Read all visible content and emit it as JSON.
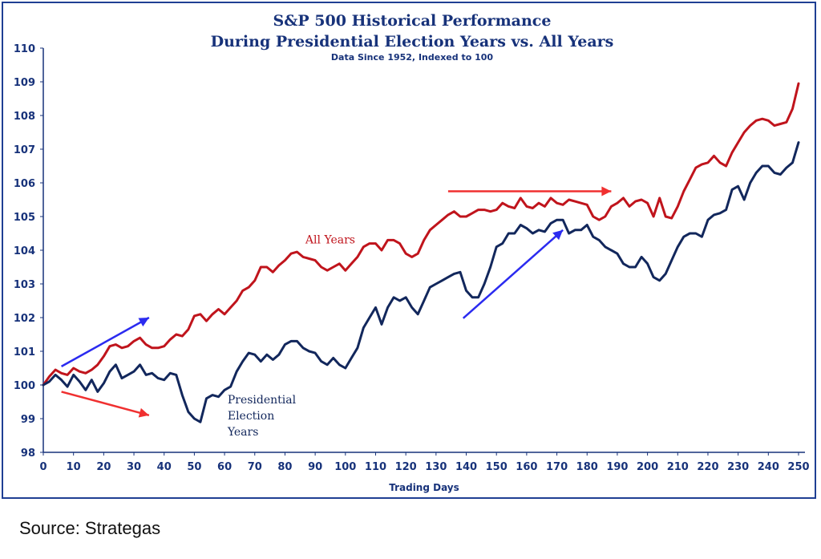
{
  "source_text": "Source: Strategas",
  "colors": {
    "all_years": "#c0141c",
    "election_years": "#12275c",
    "arrow_blue": "#2b2bf0",
    "arrow_red": "#f03030",
    "axis": "#17327a"
  },
  "chart_data": {
    "type": "line",
    "title": "S&P 500 Historical Performance",
    "title_line2": "During Presidential Election Years vs. All Years",
    "subtitle": "Data Since 1952, Indexed to 100",
    "xlabel": "Trading Days",
    "ylabel": "",
    "xlim": [
      0,
      252
    ],
    "ylim": [
      98,
      110
    ],
    "xticks": [
      0,
      10,
      20,
      30,
      40,
      50,
      60,
      70,
      80,
      90,
      100,
      110,
      120,
      130,
      140,
      150,
      160,
      170,
      180,
      190,
      200,
      210,
      220,
      230,
      240,
      250
    ],
    "yticks": [
      98,
      99,
      100,
      101,
      102,
      103,
      104,
      105,
      106,
      107,
      108,
      109,
      110
    ],
    "grid": false,
    "series": [
      {
        "name": "All Years",
        "x": [
          0,
          2,
          4,
          6,
          8,
          10,
          12,
          14,
          16,
          18,
          20,
          22,
          24,
          26,
          28,
          30,
          32,
          34,
          36,
          38,
          40,
          42,
          44,
          46,
          48,
          50,
          52,
          54,
          56,
          58,
          60,
          62,
          64,
          66,
          68,
          70,
          72,
          74,
          76,
          78,
          80,
          82,
          84,
          86,
          88,
          90,
          92,
          94,
          96,
          98,
          100,
          102,
          104,
          106,
          108,
          110,
          112,
          114,
          116,
          118,
          120,
          122,
          124,
          126,
          128,
          130,
          132,
          134,
          136,
          138,
          140,
          142,
          144,
          146,
          148,
          150,
          152,
          154,
          156,
          158,
          160,
          162,
          164,
          166,
          168,
          170,
          172,
          174,
          176,
          178,
          180,
          182,
          184,
          186,
          188,
          190,
          192,
          194,
          196,
          198,
          200,
          202,
          204,
          206,
          208,
          210,
          212,
          214,
          216,
          218,
          220,
          222,
          224,
          226,
          228,
          230,
          232,
          234,
          236,
          238,
          240,
          242,
          244,
          246,
          248,
          250
        ],
        "values": [
          100.0,
          100.25,
          100.45,
          100.35,
          100.3,
          100.5,
          100.4,
          100.35,
          100.45,
          100.6,
          100.85,
          101.15,
          101.2,
          101.1,
          101.15,
          101.3,
          101.4,
          101.2,
          101.1,
          101.1,
          101.15,
          101.35,
          101.5,
          101.45,
          101.65,
          102.05,
          102.1,
          101.9,
          102.1,
          102.25,
          102.1,
          102.3,
          102.5,
          102.8,
          102.9,
          103.1,
          103.5,
          103.5,
          103.35,
          103.55,
          103.7,
          103.9,
          103.95,
          103.8,
          103.75,
          103.7,
          103.5,
          103.4,
          103.5,
          103.6,
          103.4,
          103.6,
          103.8,
          104.1,
          104.2,
          104.2,
          104.0,
          104.3,
          104.3,
          104.2,
          103.9,
          103.8,
          103.9,
          104.3,
          104.6,
          104.75,
          104.9,
          105.05,
          105.15,
          105.0,
          105.0,
          105.1,
          105.2,
          105.2,
          105.15,
          105.2,
          105.4,
          105.3,
          105.25,
          105.55,
          105.3,
          105.25,
          105.4,
          105.3,
          105.55,
          105.4,
          105.35,
          105.5,
          105.45,
          105.4,
          105.35,
          105.0,
          104.9,
          105.0,
          105.3,
          105.4,
          105.55,
          105.3,
          105.45,
          105.5,
          105.4,
          105.0,
          105.55,
          105.0,
          104.95,
          105.3,
          105.75,
          106.1,
          106.45,
          106.55,
          106.6,
          106.8,
          106.6,
          106.5,
          106.9,
          107.2,
          107.5,
          107.7,
          107.85,
          107.9,
          107.85,
          107.7,
          107.75,
          107.8,
          108.2,
          108.95
        ]
      },
      {
        "name": "Presidential Election Years",
        "x": [
          0,
          2,
          4,
          6,
          8,
          10,
          12,
          14,
          16,
          18,
          20,
          22,
          24,
          26,
          28,
          30,
          32,
          34,
          36,
          38,
          40,
          42,
          44,
          46,
          48,
          50,
          52,
          54,
          56,
          58,
          60,
          62,
          64,
          66,
          68,
          70,
          72,
          74,
          76,
          78,
          80,
          82,
          84,
          86,
          88,
          90,
          92,
          94,
          96,
          98,
          100,
          102,
          104,
          106,
          108,
          110,
          112,
          114,
          116,
          118,
          120,
          122,
          124,
          126,
          128,
          130,
          132,
          134,
          136,
          138,
          140,
          142,
          144,
          146,
          148,
          150,
          152,
          154,
          156,
          158,
          160,
          162,
          164,
          166,
          168,
          170,
          172,
          174,
          176,
          178,
          180,
          182,
          184,
          186,
          188,
          190,
          192,
          194,
          196,
          198,
          200,
          202,
          204,
          206,
          208,
          210,
          212,
          214,
          216,
          218,
          220,
          222,
          224,
          226,
          228,
          230,
          232,
          234,
          236,
          238,
          240,
          242,
          244,
          246,
          248,
          250
        ],
        "values": [
          100.0,
          100.1,
          100.3,
          100.15,
          99.95,
          100.3,
          100.1,
          99.85,
          100.15,
          99.8,
          100.05,
          100.4,
          100.6,
          100.2,
          100.3,
          100.4,
          100.6,
          100.3,
          100.35,
          100.2,
          100.15,
          100.35,
          100.3,
          99.7,
          99.2,
          99.0,
          98.9,
          99.6,
          99.7,
          99.65,
          99.85,
          99.95,
          100.4,
          100.7,
          100.95,
          100.9,
          100.7,
          100.9,
          100.75,
          100.9,
          101.2,
          101.3,
          101.3,
          101.1,
          101.0,
          100.95,
          100.7,
          100.6,
          100.8,
          100.6,
          100.5,
          100.8,
          101.1,
          101.7,
          102.0,
          102.3,
          101.8,
          102.3,
          102.6,
          102.5,
          102.6,
          102.3,
          102.1,
          102.5,
          102.9,
          103.0,
          103.1,
          103.2,
          103.3,
          103.35,
          102.8,
          102.6,
          102.6,
          103.0,
          103.5,
          104.1,
          104.2,
          104.5,
          104.5,
          104.75,
          104.65,
          104.5,
          104.6,
          104.55,
          104.8,
          104.9,
          104.9,
          104.5,
          104.6,
          104.6,
          104.75,
          104.4,
          104.3,
          104.1,
          104.0,
          103.9,
          103.6,
          103.5,
          103.5,
          103.8,
          103.6,
          103.2,
          103.1,
          103.3,
          103.7,
          104.1,
          104.4,
          104.5,
          104.5,
          104.4,
          104.9,
          105.05,
          105.1,
          105.2,
          105.8,
          105.9,
          105.5,
          106.0,
          106.3,
          106.5,
          106.5,
          106.3,
          106.25,
          106.45,
          106.6,
          107.2
        ]
      }
    ],
    "annotations": [
      {
        "text": "All Years",
        "x": 95,
        "y": 104.2
      },
      {
        "text": "Presidential",
        "x": 61,
        "y": 99.45
      },
      {
        "text": "Election",
        "x": 61,
        "y": 98.98
      },
      {
        "text": "Years",
        "x": 61,
        "y": 98.5
      }
    ],
    "arrows": [
      {
        "color": "blue",
        "from": [
          6,
          100.55
        ],
        "to": [
          35,
          102.0
        ]
      },
      {
        "color": "red",
        "from": [
          6,
          99.8
        ],
        "to": [
          35,
          99.1
        ]
      },
      {
        "color": "red",
        "from": [
          134,
          105.75
        ],
        "to": [
          188,
          105.75
        ]
      },
      {
        "color": "blue",
        "from": [
          139,
          101.98
        ],
        "to": [
          172,
          104.6
        ]
      }
    ]
  }
}
